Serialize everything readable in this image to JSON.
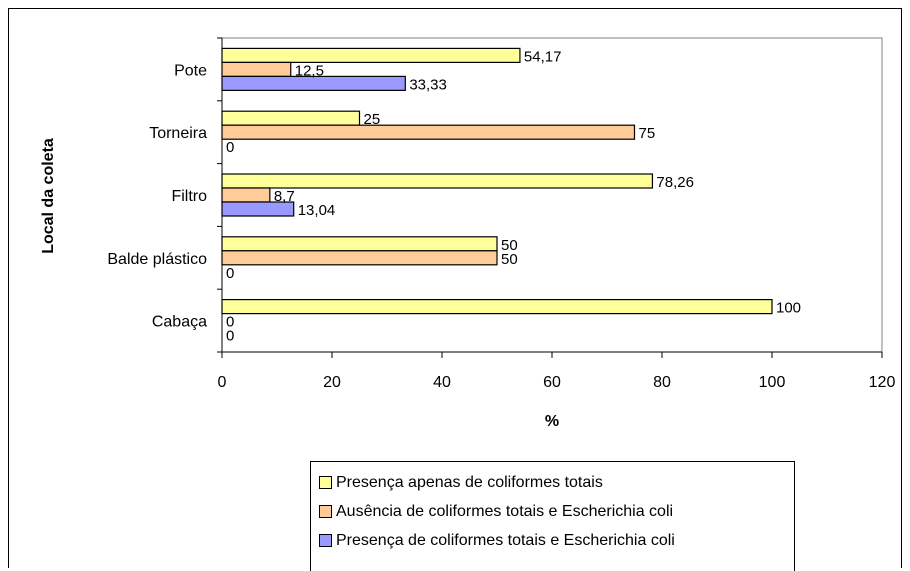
{
  "chart_data": {
    "type": "bar",
    "orientation": "horizontal",
    "title": "",
    "xlabel": "%",
    "ylabel": "Local da coleta",
    "xlim": [
      0,
      120
    ],
    "xticks": [
      "0",
      "20",
      "40",
      "60",
      "80",
      "100",
      "120"
    ],
    "categories": [
      "Pote",
      "Torneira",
      "Filtro",
      "Balde plástico",
      "Cabaça"
    ],
    "series": [
      {
        "name": "Presença apenas de coliformes totais",
        "color": "#FFFF99",
        "values": [
          54.17,
          25,
          78.26,
          50,
          100
        ],
        "labels": [
          "54,17",
          "25",
          "78,26",
          "50",
          "100"
        ]
      },
      {
        "name": "Ausência de coliformes totais e Escherichia coli",
        "color": "#FFCC99",
        "values": [
          12.5,
          75,
          8.7,
          50,
          0
        ],
        "labels": [
          "12,5",
          "75",
          "8,7",
          "50",
          "0"
        ]
      },
      {
        "name": "Presença de coliformes totais e Escherichia coli",
        "color": "#9999FF",
        "values": [
          33.33,
          0,
          13.04,
          0,
          0
        ],
        "labels": [
          "33,33",
          "0",
          "13,04",
          "0",
          "0"
        ]
      }
    ],
    "grid": false,
    "legend_position": "bottom"
  }
}
